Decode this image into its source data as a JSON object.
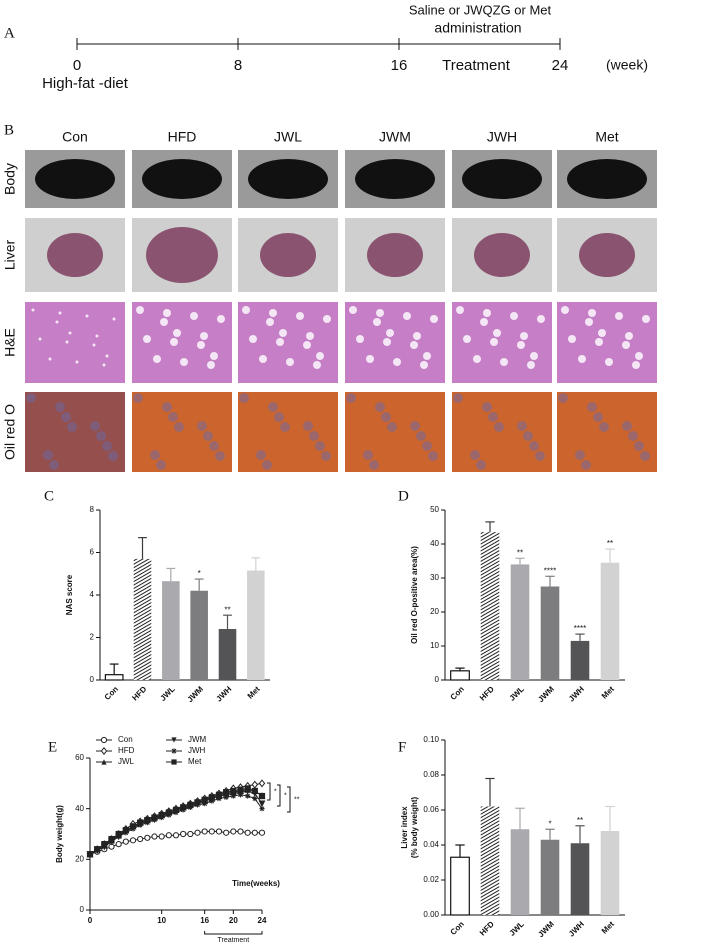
{
  "panel_labels": [
    "A",
    "B",
    "C",
    "D",
    "E",
    "F"
  ],
  "timeline": {
    "xlim": [
      0,
      24
    ],
    "ticks": [
      0,
      8,
      16,
      24
    ],
    "unit": "(week)",
    "start_label": "High-fat -diet",
    "treatment_label": "Treatment",
    "note": [
      "Saline or JWQZG or Met",
      "administration"
    ]
  },
  "image_grid": {
    "columns": [
      "Con",
      "HFD",
      "JWL",
      "JWM",
      "JWH",
      "Met"
    ],
    "rows": [
      "Body",
      "Liver",
      "H&E",
      "Oil red O"
    ]
  },
  "chart_data": [
    {
      "type": "bar",
      "ylabel": "NAS score",
      "categories": [
        "Con",
        "HFD",
        "JWL",
        "JWM",
        "JWH",
        "Met"
      ],
      "values": [
        0.25,
        5.7,
        4.65,
        4.2,
        2.4,
        5.15
      ],
      "errors": [
        0.5,
        1.0,
        0.6,
        0.55,
        0.65,
        0.6
      ],
      "significance": [
        null,
        null,
        null,
        "*",
        "**",
        null
      ],
      "colors": [
        "#ffffff",
        "#3a3a3a",
        "#a9a9ae",
        "#7d7d80",
        "#545456",
        "#d2d2d2"
      ],
      "hatch": [
        false,
        true,
        false,
        false,
        false,
        false
      ],
      "ylim": [
        0,
        8
      ],
      "yticks": [
        0,
        2,
        4,
        6,
        8
      ]
    },
    {
      "type": "bar",
      "ylabel": "Oil red O-positive area(%)",
      "categories": [
        "Con",
        "HFD",
        "JWL",
        "JWM",
        "JWH",
        "Met"
      ],
      "values": [
        2.7,
        43.5,
        34,
        27.5,
        11.5,
        34.5
      ],
      "errors": [
        0.8,
        3,
        1.8,
        3,
        2,
        4
      ],
      "significance": [
        null,
        null,
        "**",
        "****",
        "****",
        "**"
      ],
      "colors": [
        "#ffffff",
        "#3a3a3a",
        "#a9a9ae",
        "#7d7d80",
        "#545456",
        "#d2d2d2"
      ],
      "hatch": [
        false,
        true,
        false,
        false,
        false,
        false
      ],
      "ylim": [
        0,
        50
      ],
      "yticks": [
        0,
        10,
        20,
        30,
        40,
        50
      ]
    },
    {
      "type": "line",
      "ylabel": "Body weight(g)",
      "xlabel": "Time(weeks)",
      "x": [
        0,
        1,
        2,
        3,
        4,
        5,
        6,
        7,
        8,
        9,
        10,
        11,
        12,
        13,
        14,
        15,
        16,
        17,
        18,
        19,
        20,
        21,
        22,
        23,
        24
      ],
      "series": [
        {
          "name": "Con",
          "color": "#222222",
          "marker": "circle-open",
          "values": [
            22,
            23,
            24,
            25,
            26,
            27,
            27.5,
            28,
            28.5,
            29,
            29,
            29.5,
            29.5,
            30,
            30,
            30.5,
            31,
            31,
            31,
            30.5,
            31,
            31,
            30.5,
            30.5,
            30.5
          ]
        },
        {
          "name": "HFD",
          "color": "#222222",
          "marker": "diamond-open",
          "values": [
            22,
            24,
            26,
            28,
            30,
            32,
            34,
            35,
            36,
            37,
            38,
            39,
            40,
            41,
            42,
            43,
            44,
            45,
            46,
            47,
            48,
            48.5,
            49,
            49.5,
            50
          ]
        },
        {
          "name": "JWL",
          "color": "#222222",
          "marker": "triangle",
          "values": [
            22,
            24,
            25.5,
            27.5,
            29.5,
            31.5,
            33,
            34.5,
            35.5,
            36.5,
            37.5,
            38.5,
            39.5,
            40.5,
            41.5,
            42.5,
            43,
            44,
            45,
            46,
            46.5,
            47,
            47.5,
            47,
            45
          ]
        },
        {
          "name": "JWM",
          "color": "#222222",
          "marker": "triangle-down",
          "values": [
            22,
            23.5,
            25,
            27,
            29,
            31,
            32.5,
            34,
            35,
            36,
            37,
            38,
            39,
            40,
            41,
            42,
            43,
            44,
            45,
            45.5,
            46,
            46.5,
            47,
            46,
            42
          ]
        },
        {
          "name": "JWH",
          "color": "#222222",
          "marker": "star",
          "values": [
            22,
            23.5,
            25,
            27,
            29,
            30.5,
            32,
            33.5,
            34.5,
            35.5,
            36.5,
            37.5,
            38.5,
            39.5,
            40.5,
            41.5,
            42,
            43,
            44,
            44.5,
            45,
            45.5,
            45,
            44,
            40
          ]
        },
        {
          "name": "Met",
          "color": "#222222",
          "marker": "square",
          "values": [
            22,
            24,
            26,
            28,
            30,
            31.5,
            33,
            34.5,
            35.5,
            36.5,
            37.5,
            38.5,
            39.5,
            40.5,
            41.5,
            42.5,
            43.5,
            44.5,
            45.5,
            46.5,
            47,
            47.5,
            48,
            47,
            45
          ]
        }
      ],
      "xlim": [
        0,
        24
      ],
      "xticks": [
        0,
        10,
        16,
        20,
        24
      ],
      "ylim": [
        0,
        60
      ],
      "yticks": [
        0,
        20,
        40,
        60
      ],
      "treatment_label": "Treatment",
      "treatment_range": [
        16,
        24
      ],
      "significance": [
        "*",
        "*",
        "**"
      ]
    },
    {
      "type": "bar",
      "ylabel": [
        "Liver index",
        "(% body weight)"
      ],
      "categories": [
        "Con",
        "HFD",
        "JWL",
        "JWM",
        "JWH",
        "Met"
      ],
      "values": [
        0.033,
        0.062,
        0.049,
        0.043,
        0.041,
        0.048
      ],
      "errors": [
        0.007,
        0.016,
        0.012,
        0.006,
        0.01,
        0.014
      ],
      "significance": [
        null,
        null,
        null,
        "*",
        "**",
        null
      ],
      "colors": [
        "#ffffff",
        "#3a3a3a",
        "#a9a9ae",
        "#7d7d80",
        "#545456",
        "#d2d2d2"
      ],
      "hatch": [
        false,
        true,
        false,
        false,
        false,
        false
      ],
      "ylim": [
        0,
        0.1
      ],
      "yticks": [
        {
          "value": 0,
          "label": "0.00"
        },
        {
          "value": 0.02,
          "label": "0.02"
        },
        {
          "value": 0.04,
          "label": "0.04"
        },
        {
          "value": 0.06,
          "label": "0.06"
        },
        {
          "value": 0.08,
          "label": "0.08"
        },
        {
          "value": 0.1,
          "label": "0.10"
        }
      ]
    }
  ]
}
